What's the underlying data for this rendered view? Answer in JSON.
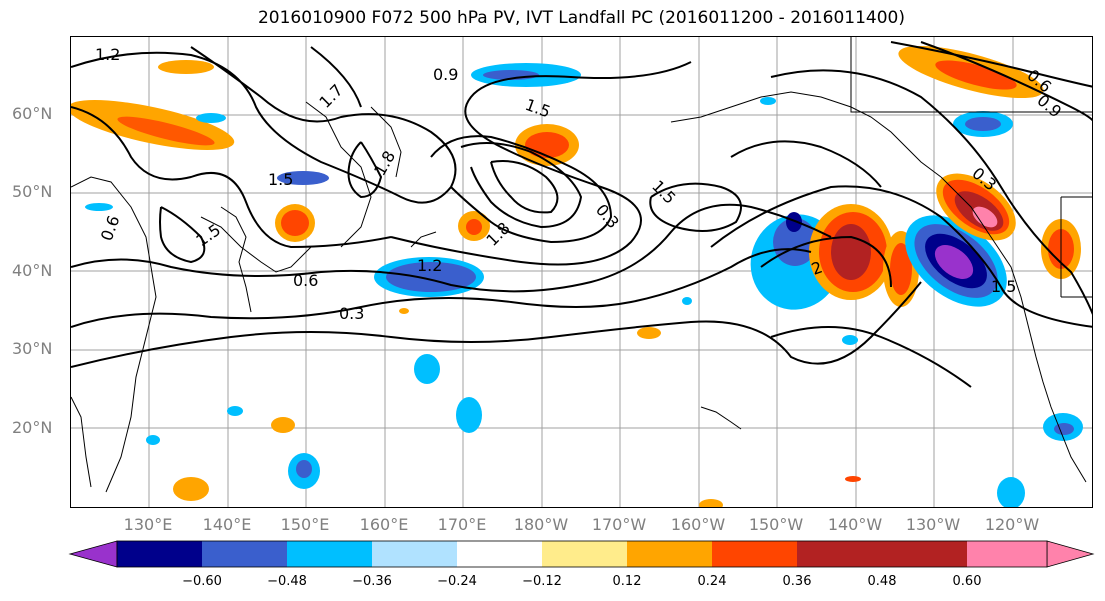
{
  "title": "2016010900 F072 500 hPa PV, IVT Landfall PC (2016011200 - 2016011400)",
  "lat_labels": [
    "60°N",
    "50°N",
    "40°N",
    "30°N",
    "20°N"
  ],
  "lon_labels": [
    "130°E",
    "140°E",
    "150°E",
    "160°E",
    "170°E",
    "180°W",
    "170°W",
    "160°W",
    "150°W",
    "140°W",
    "130°W",
    "120°W"
  ],
  "colorbar": {
    "colors": [
      "#9932cc",
      "#00008b",
      "#3a5fcd",
      "#00bfff",
      "#b0e2ff",
      "#ffffff",
      "#ffec8b",
      "#ffa500",
      "#ff4500",
      "#b22222",
      "#ff82ab"
    ],
    "tick_labels": [
      "−0.60",
      "−0.48",
      "−0.36",
      "−0.24",
      "−0.12",
      "0.12",
      "0.24",
      "0.36",
      "0.48",
      "0.60"
    ]
  },
  "contour_labels": [
    "1.2",
    "0.9",
    "1.5",
    "1.7",
    "1.8",
    "1.5",
    "0.6",
    "1.5",
    "1.2",
    "0.6",
    "0.3",
    "1.8",
    "0.3",
    "1.5",
    "2",
    "0.3",
    "0.6",
    "0.9",
    "1.5"
  ]
}
